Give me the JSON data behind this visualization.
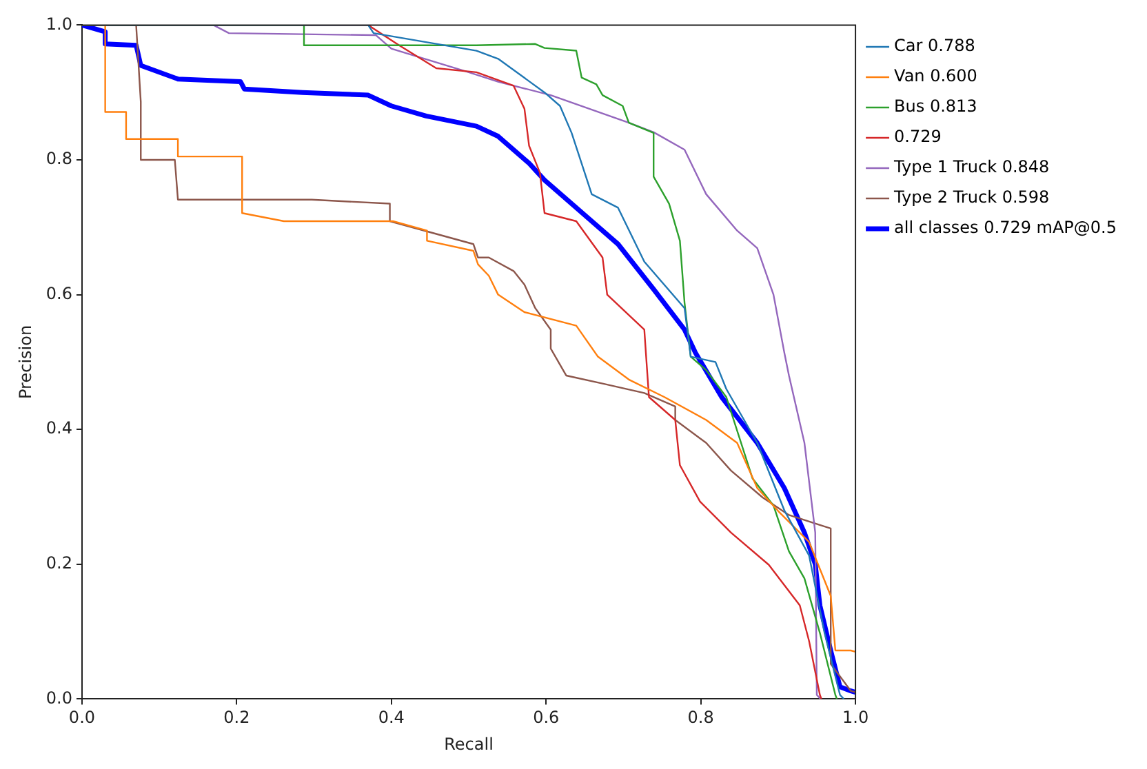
{
  "chart_data": {
    "type": "line",
    "xlabel": "Recall",
    "ylabel": "Precision",
    "xlim": [
      0,
      1
    ],
    "ylim": [
      0,
      1
    ],
    "xticks": [
      {
        "value": 0,
        "label": "0.0"
      },
      0.2,
      0.4,
      0.6,
      0.8,
      {
        "value": 1,
        "label": "1.0"
      }
    ],
    "yticks": [
      {
        "value": 0,
        "label": "0.0"
      },
      0.2,
      0.4,
      0.6,
      0.8,
      {
        "value": 1,
        "label": "1.0"
      }
    ],
    "grid": false,
    "legend": "top right",
    "marker": "none",
    "line_style": "solid",
    "series": [
      {
        "name": "Car 0.788",
        "color": "#1f77b4",
        "x": [
          0,
          0.37,
          0.377,
          0.51,
          0.538,
          0.598,
          0.618,
          0.633,
          0.659,
          0.693,
          0.727,
          0.779,
          0.787,
          0.819,
          0.833,
          0.873,
          0.908,
          0.94,
          0.96,
          0.98,
          0.985
        ],
        "values": [
          1,
          1,
          0.988,
          0.962,
          0.95,
          0.9,
          0.88,
          0.84,
          0.749,
          0.729,
          0.649,
          0.58,
          0.508,
          0.5,
          0.46,
          0.38,
          0.28,
          0.213,
          0.098,
          0.006,
          0
        ]
      },
      {
        "name": "Van 0.600",
        "color": "#ff7f0e",
        "x": [
          0,
          0.03,
          0.03,
          0.057,
          0.057,
          0.124,
          0.124,
          0.207,
          0.207,
          0.261,
          0.402,
          0.446,
          0.446,
          0.506,
          0.512,
          0.526,
          0.538,
          0.572,
          0.639,
          0.667,
          0.707,
          0.753,
          0.807,
          0.847,
          0.873,
          0.9,
          0.94,
          0.968,
          0.974,
          0.994,
          1
        ],
        "values": [
          1,
          1,
          0.871,
          0.871,
          0.831,
          0.831,
          0.805,
          0.805,
          0.721,
          0.709,
          0.709,
          0.695,
          0.68,
          0.665,
          0.645,
          0.628,
          0.6,
          0.574,
          0.554,
          0.508,
          0.474,
          0.448,
          0.414,
          0.38,
          0.313,
          0.279,
          0.233,
          0.153,
          0.072,
          0.072,
          0.07
        ]
      },
      {
        "name": "Bus 0.813",
        "color": "#2ca02c",
        "x": [
          0,
          0.287,
          0.287,
          0.39,
          0.51,
          0.586,
          0.598,
          0.639,
          0.646,
          0.665,
          0.673,
          0.699,
          0.707,
          0.739,
          0.739,
          0.759,
          0.773,
          0.779,
          0.787,
          0.807,
          0.833,
          0.867,
          0.894,
          0.914,
          0.934,
          0.954,
          0.974,
          0.976
        ],
        "values": [
          1,
          1,
          0.97,
          0.97,
          0.97,
          0.972,
          0.966,
          0.962,
          0.922,
          0.912,
          0.896,
          0.88,
          0.855,
          0.84,
          0.775,
          0.735,
          0.68,
          0.588,
          0.508,
          0.488,
          0.448,
          0.327,
          0.287,
          0.219,
          0.179,
          0.098,
          0.006,
          0
        ]
      },
      {
        "name": "0.729",
        "color": "#d62728",
        "x": [
          0,
          0.37,
          0.41,
          0.458,
          0.51,
          0.558,
          0.572,
          0.578,
          0.592,
          0.598,
          0.639,
          0.673,
          0.679,
          0.727,
          0.729,
          0.733,
          0.767,
          0.773,
          0.799,
          0.839,
          0.888,
          0.928,
          0.94,
          0.954,
          0.956
        ],
        "values": [
          1,
          1,
          0.97,
          0.936,
          0.93,
          0.91,
          0.876,
          0.821,
          0.781,
          0.721,
          0.709,
          0.655,
          0.6,
          0.548,
          0.514,
          0.448,
          0.414,
          0.347,
          0.293,
          0.247,
          0.199,
          0.139,
          0.086,
          0.006,
          0
        ]
      },
      {
        "name": "Type 1 Truck 0.848",
        "color": "#9467bd",
        "x": [
          0,
          0.17,
          0.19,
          0.38,
          0.4,
          0.5,
          0.538,
          0.606,
          0.707,
          0.739,
          0.779,
          0.807,
          0.847,
          0.873,
          0.894,
          0.908,
          0.914,
          0.934,
          0.948,
          0.95,
          0.955
        ],
        "values": [
          1,
          1,
          0.988,
          0.985,
          0.965,
          0.93,
          0.916,
          0.896,
          0.855,
          0.841,
          0.815,
          0.749,
          0.695,
          0.669,
          0.6,
          0.514,
          0.48,
          0.38,
          0.247,
          0.006,
          0
        ]
      },
      {
        "name": "Type 2 Truck 0.598",
        "color": "#8c564b",
        "x": [
          0,
          0.07,
          0.076,
          0.076,
          0.12,
          0.124,
          0.297,
          0.398,
          0.398,
          0.506,
          0.512,
          0.526,
          0.558,
          0.572,
          0.586,
          0.606,
          0.606,
          0.626,
          0.673,
          0.727,
          0.767,
          0.767,
          0.807,
          0.839,
          0.88,
          0.914,
          0.968,
          0.968,
          0.994,
          1
        ],
        "values": [
          1,
          1,
          0.886,
          0.8,
          0.8,
          0.741,
          0.741,
          0.735,
          0.709,
          0.675,
          0.655,
          0.655,
          0.635,
          0.615,
          0.58,
          0.548,
          0.52,
          0.48,
          0.468,
          0.454,
          0.434,
          0.414,
          0.38,
          0.339,
          0.299,
          0.273,
          0.253,
          0.052,
          0.012,
          0.01
        ]
      },
      {
        "name": "all classes 0.729 mAP@0.5",
        "color": "#0000ff",
        "x": [
          0,
          0.03,
          0.03,
          0.07,
          0.076,
          0.124,
          0.205,
          0.21,
          0.285,
          0.37,
          0.4,
          0.445,
          0.51,
          0.538,
          0.578,
          0.598,
          0.653,
          0.693,
          0.739,
          0.779,
          0.793,
          0.827,
          0.873,
          0.908,
          0.934,
          0.948,
          0.954,
          0.968,
          0.98,
          0.994,
          1
        ],
        "values": [
          1,
          0.99,
          0.972,
          0.97,
          0.94,
          0.92,
          0.916,
          0.905,
          0.9,
          0.896,
          0.88,
          0.865,
          0.85,
          0.835,
          0.795,
          0.77,
          0.715,
          0.675,
          0.608,
          0.548,
          0.514,
          0.448,
          0.38,
          0.313,
          0.247,
          0.2,
          0.139,
          0.072,
          0.018,
          0.012,
          0.01
        ]
      }
    ]
  }
}
